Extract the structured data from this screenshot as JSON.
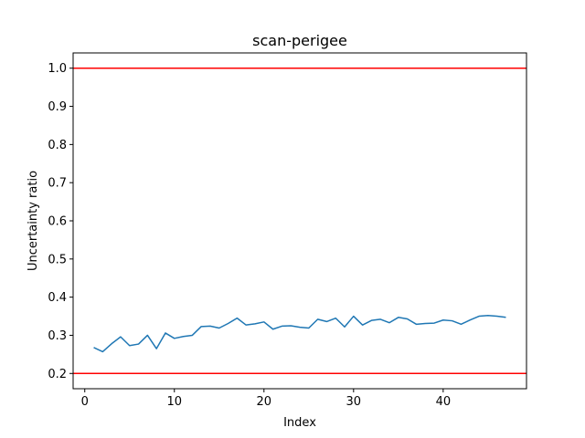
{
  "chart_data": {
    "type": "line",
    "title": "scan-perigee",
    "xlabel": "Index",
    "ylabel": "Uncertainty ratio",
    "xlim": [
      -1.3,
      49.3
    ],
    "ylim": [
      0.16,
      1.04
    ],
    "xticks": [
      0,
      10,
      20,
      30,
      40
    ],
    "xtick_labels": [
      "0",
      "10",
      "20",
      "30",
      "40"
    ],
    "yticks": [
      0.2,
      0.3,
      0.4,
      0.5,
      0.6,
      0.7,
      0.8,
      0.9,
      1.0
    ],
    "ytick_labels": [
      "0.2",
      "0.3",
      "0.4",
      "0.5",
      "0.6",
      "0.7",
      "0.8",
      "0.9",
      "1.0"
    ],
    "grid": false,
    "series": [
      {
        "color": "#1f77b4",
        "x": [
          1,
          2,
          3,
          4,
          5,
          6,
          7,
          8,
          9,
          10,
          11,
          12,
          13,
          14,
          15,
          16,
          17,
          18,
          19,
          20,
          21,
          22,
          23,
          24,
          25,
          26,
          27,
          28,
          29,
          30,
          31,
          32,
          33,
          34,
          35,
          36,
          37,
          38,
          39,
          40,
          41,
          42,
          43,
          44,
          45,
          46,
          47
        ],
        "y": [
          0.268,
          0.257,
          0.278,
          0.296,
          0.273,
          0.277,
          0.3,
          0.265,
          0.306,
          0.292,
          0.297,
          0.3,
          0.323,
          0.324,
          0.319,
          0.331,
          0.345,
          0.327,
          0.33,
          0.335,
          0.316,
          0.324,
          0.325,
          0.321,
          0.319,
          0.342,
          0.336,
          0.345,
          0.322,
          0.35,
          0.327,
          0.339,
          0.342,
          0.333,
          0.347,
          0.343,
          0.329,
          0.331,
          0.332,
          0.34,
          0.338,
          0.329,
          0.34,
          0.35,
          0.352,
          0.35,
          0.347
        ]
      }
    ],
    "hlines": [
      {
        "y": 1.0,
        "color": "#ff0000"
      },
      {
        "y": 0.2,
        "color": "#ff0000"
      }
    ]
  }
}
